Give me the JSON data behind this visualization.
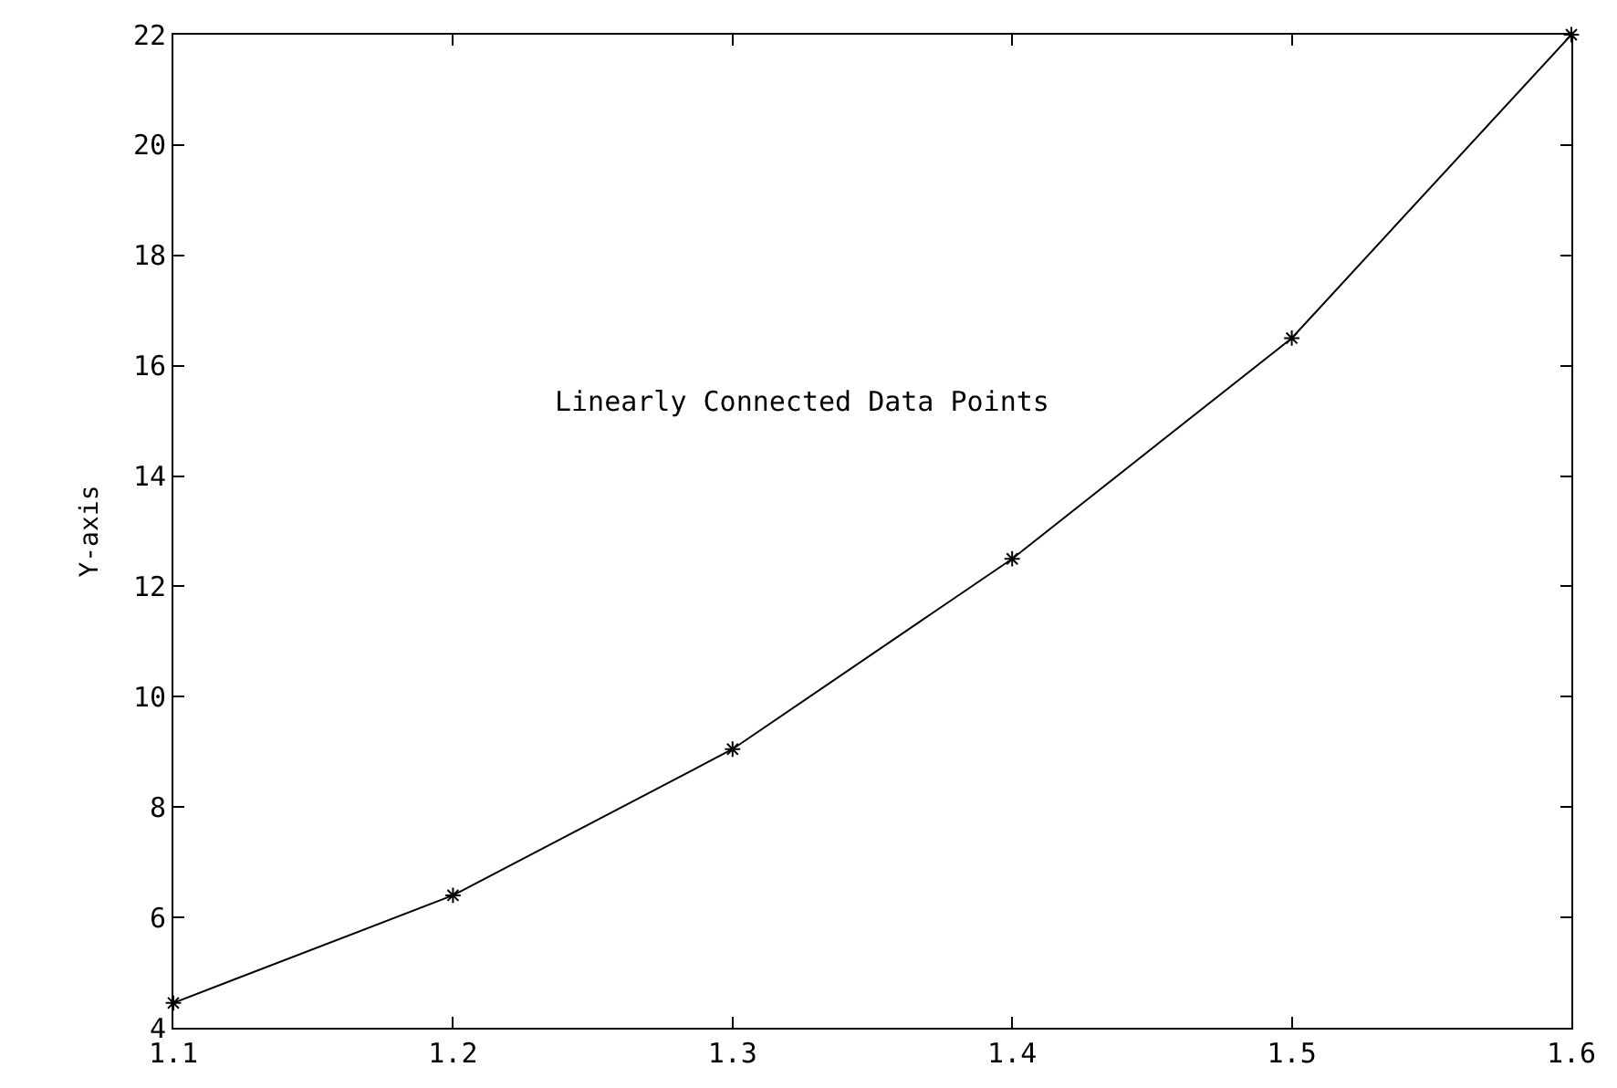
{
  "chart_data": {
    "type": "line",
    "ylabel": "Y-axis",
    "x": [
      1.1,
      1.2,
      1.3,
      1.4,
      1.5,
      1.6
    ],
    "series": [
      {
        "color": "#000000",
        "values": [
          4.45,
          6.4,
          9.05,
          12.5,
          16.5,
          22.0
        ]
      }
    ],
    "annotations": [
      "Linearly Connected Data Points"
    ],
    "xlim": [
      1.1,
      1.6
    ],
    "xticks": [
      1.1,
      1.2,
      1.3,
      1.4,
      1.5,
      1.6
    ],
    "ylim": [
      4,
      22
    ],
    "yticks": [
      4,
      6,
      8,
      10,
      12,
      14,
      16,
      18,
      20,
      22
    ],
    "legend": false,
    "marker": "cross",
    "line_style": "solid"
  }
}
